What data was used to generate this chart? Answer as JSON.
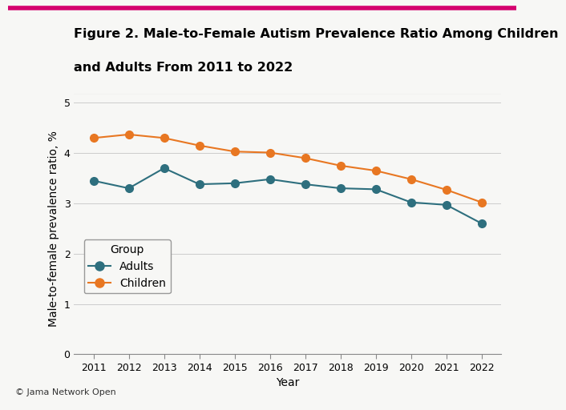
{
  "years": [
    2011,
    2012,
    2013,
    2014,
    2015,
    2016,
    2017,
    2018,
    2019,
    2020,
    2021,
    2022
  ],
  "adults": [
    3.45,
    3.3,
    3.7,
    3.38,
    3.4,
    3.48,
    3.38,
    3.3,
    3.28,
    3.02,
    2.97,
    2.6
  ],
  "children": [
    4.3,
    4.37,
    4.3,
    4.15,
    4.03,
    4.01,
    3.9,
    3.75,
    3.65,
    3.48,
    3.27,
    3.02
  ],
  "adults_color": "#2e6f7e",
  "children_color": "#e87722",
  "background_color": "#f7f7f5",
  "title_line1": "Figure 2. Male-to-Female Autism Prevalence Ratio Among Children",
  "title_line2": "and Adults From 2011 to 2022",
  "ylabel": "Male-to-female prevalence ratio, %",
  "xlabel": "Year",
  "ylim": [
    0,
    5
  ],
  "yticks": [
    0,
    1,
    2,
    3,
    4,
    5
  ],
  "legend_title": "Group",
  "legend_adults": "Adults",
  "legend_children": "Children",
  "watermark": "© Jama Network Open",
  "title_fontsize": 11.5,
  "axis_fontsize": 10,
  "tick_fontsize": 9,
  "legend_fontsize": 10,
  "marker_size": 7,
  "line_width": 1.5,
  "top_bar_color": "#d4006e",
  "separator_color": "#aaaaaa",
  "watermark_bg": "#d0d0d0"
}
